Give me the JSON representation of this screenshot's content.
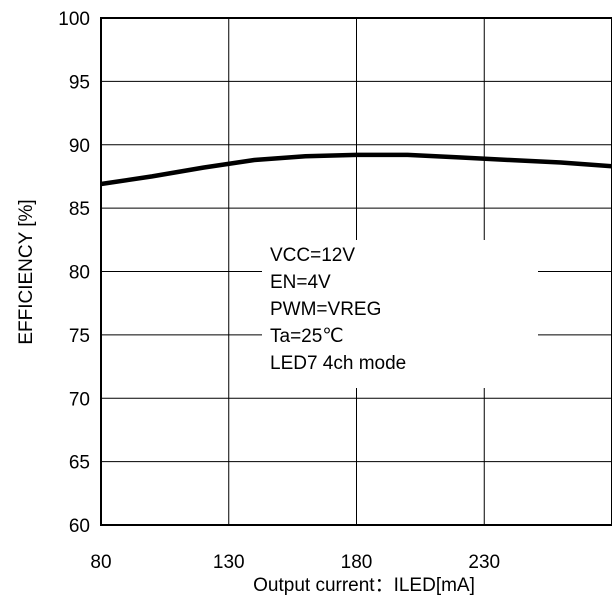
{
  "chart_data": {
    "type": "line",
    "title": "",
    "xlabel": "Output current：ILED[mA]",
    "ylabel": "EFFICIENCY [%]",
    "xlim": [
      80,
      280
    ],
    "ylim": [
      60,
      100
    ],
    "x_ticks": [
      "80",
      "130",
      "180",
      "230"
    ],
    "y_ticks": [
      "60",
      "65",
      "70",
      "75",
      "80",
      "85",
      "90",
      "95",
      "100"
    ],
    "grid": true,
    "series": [
      {
        "x": [
          80,
          100,
          120,
          140,
          160,
          180,
          190,
          200,
          220,
          240,
          260,
          280
        ],
        "y": [
          86.9,
          87.5,
          88.2,
          88.8,
          89.1,
          89.2,
          89.2,
          89.2,
          89.0,
          88.8,
          88.6,
          88.3
        ]
      }
    ],
    "annotations": [
      "VCC=12V",
      "EN=4V",
      "PWM=VREG",
      "Ta=25℃",
      "LED7 4ch mode"
    ]
  }
}
